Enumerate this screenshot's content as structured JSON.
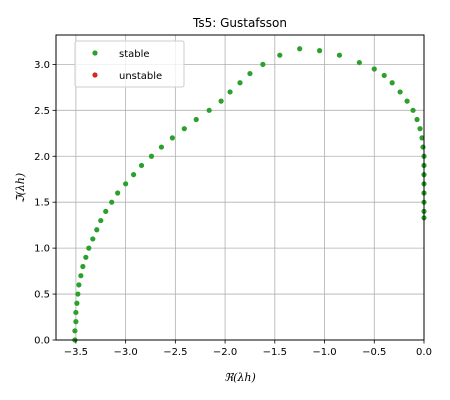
{
  "chart_data": {
    "type": "scatter",
    "title": "Ts5: Gustafsson",
    "xlabel": "ℜ(λh)",
    "ylabel": "ℑ(λh)",
    "xlim": [
      -3.7,
      0.0
    ],
    "ylim": [
      0.0,
      3.32
    ],
    "xticks": [
      -3.5,
      -3.0,
      -2.5,
      -2.0,
      -1.5,
      -1.0,
      -0.5,
      0.0
    ],
    "xtick_labels": [
      "−3.5",
      "−3.0",
      "−2.5",
      "−2.0",
      "−1.5",
      "−1.0",
      "−0.5",
      "0.0"
    ],
    "yticks": [
      0.0,
      0.5,
      1.0,
      1.5,
      2.0,
      2.5,
      3.0
    ],
    "ytick_labels": [
      "0.0",
      "0.5",
      "1.0",
      "1.5",
      "2.0",
      "2.5",
      "3.0"
    ],
    "grid": true,
    "legend": {
      "placement": "upper-left",
      "entries": [
        {
          "label": "stable",
          "color": "#2ca02c"
        },
        {
          "label": "unstable",
          "color": "#d62728"
        }
      ]
    },
    "series": [
      {
        "name": "stable",
        "color": "#2ca02c",
        "points": [
          [
            -3.51,
            0.0
          ],
          [
            -3.51,
            0.1
          ],
          [
            -3.5,
            0.2
          ],
          [
            -3.5,
            0.3
          ],
          [
            -3.49,
            0.4
          ],
          [
            -3.48,
            0.5
          ],
          [
            -3.47,
            0.6
          ],
          [
            -3.45,
            0.7
          ],
          [
            -3.43,
            0.8
          ],
          [
            -3.4,
            0.9
          ],
          [
            -3.37,
            1.0
          ],
          [
            -3.33,
            1.1
          ],
          [
            -3.29,
            1.2
          ],
          [
            -3.25,
            1.3
          ],
          [
            -3.2,
            1.4
          ],
          [
            -3.14,
            1.5
          ],
          [
            -3.08,
            1.6
          ],
          [
            -3.0,
            1.7
          ],
          [
            -2.92,
            1.8
          ],
          [
            -2.84,
            1.9
          ],
          [
            -2.74,
            2.0
          ],
          [
            -2.64,
            2.1
          ],
          [
            -2.53,
            2.2
          ],
          [
            -2.41,
            2.3
          ],
          [
            -2.29,
            2.4
          ],
          [
            -2.16,
            2.5
          ],
          [
            -2.04,
            2.6
          ],
          [
            -1.95,
            2.7
          ],
          [
            -1.85,
            2.8
          ],
          [
            -1.75,
            2.9
          ],
          [
            -1.62,
            3.0
          ],
          [
            -1.45,
            3.1
          ],
          [
            -1.25,
            3.17
          ],
          [
            -1.05,
            3.15
          ],
          [
            -0.85,
            3.1
          ],
          [
            -0.65,
            3.02
          ],
          [
            -0.5,
            2.95
          ],
          [
            -0.4,
            2.88
          ],
          [
            -0.32,
            2.8
          ],
          [
            -0.24,
            2.7
          ],
          [
            -0.17,
            2.6
          ],
          [
            -0.11,
            2.5
          ],
          [
            -0.07,
            2.4
          ],
          [
            -0.04,
            2.3
          ],
          [
            -0.02,
            2.2
          ],
          [
            -0.01,
            2.1
          ],
          [
            0.0,
            2.0
          ],
          [
            0.0,
            1.9
          ],
          [
            0.0,
            1.8
          ],
          [
            0.0,
            1.7
          ],
          [
            0.0,
            1.6
          ],
          [
            0.0,
            1.5
          ],
          [
            0.0,
            1.4
          ],
          [
            0.0,
            1.33
          ]
        ]
      }
    ]
  }
}
